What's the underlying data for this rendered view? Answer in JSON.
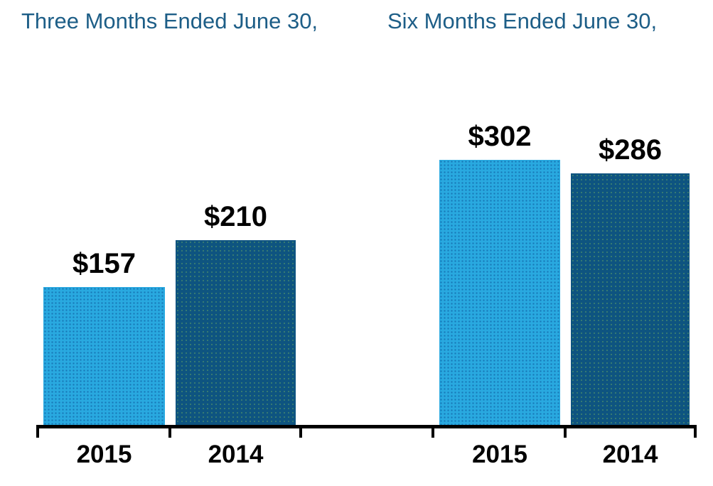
{
  "chart_data": {
    "type": "bar",
    "title": "",
    "xlabel": "",
    "ylabel": "",
    "ylim": [
      0,
      480
    ],
    "gridlines": false,
    "y_axis_visible": false,
    "legend": "none",
    "groups": [
      {
        "header": "Three Months Ended June 30,",
        "bars": [
          {
            "category": "2015",
            "series": "2015",
            "value": 157,
            "label": "$157"
          },
          {
            "category": "2014",
            "series": "2014",
            "value": 210,
            "label": "$210"
          }
        ]
      },
      {
        "header": "Six Months Ended June 30,",
        "bars": [
          {
            "category": "2015",
            "series": "2015",
            "value": 302,
            "label": "$302"
          },
          {
            "category": "2014",
            "series": "2014",
            "value": 286,
            "label": "$286"
          }
        ]
      }
    ],
    "colors": {
      "series_2015": "#29A9E0",
      "series_2014": "#0E5480",
      "header_text": "#1D5E87",
      "value_text": "#000000",
      "axis": "#000000"
    }
  }
}
